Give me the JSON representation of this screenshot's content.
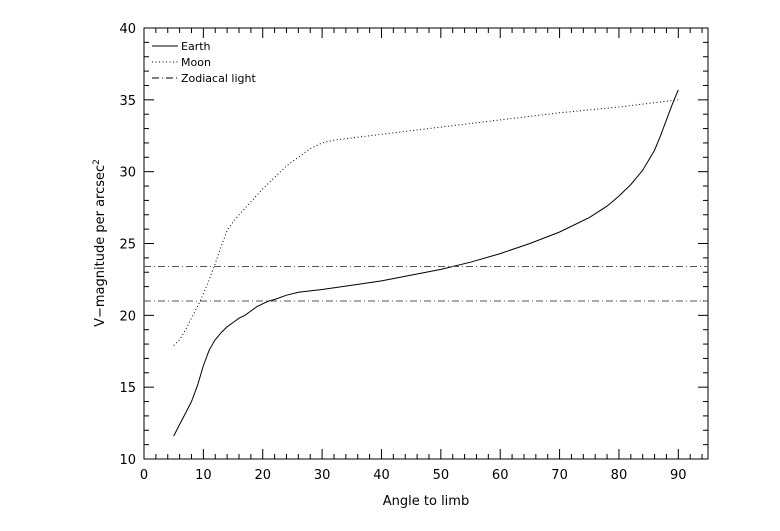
{
  "chart_data": {
    "type": "line",
    "title": "",
    "xlabel": "Angle to limb",
    "ylabel_main": "V−magnitude per arcsec",
    "ylabel_sup": "2",
    "xlim": [
      0,
      95
    ],
    "ylim": [
      10,
      40
    ],
    "x_ticks": [
      0,
      10,
      20,
      30,
      40,
      50,
      60,
      70,
      80,
      90
    ],
    "y_ticks": [
      10,
      15,
      20,
      25,
      30,
      35,
      40
    ],
    "grid": false,
    "legend_position": "top-left",
    "series": [
      {
        "name": "Earth",
        "style": "solid",
        "points": [
          [
            5,
            11.6
          ],
          [
            6,
            12.4
          ],
          [
            7,
            13.2
          ],
          [
            8,
            14.0
          ],
          [
            9,
            15.1
          ],
          [
            10,
            16.5
          ],
          [
            11,
            17.6
          ],
          [
            12,
            18.3
          ],
          [
            13,
            18.8
          ],
          [
            14,
            19.2
          ],
          [
            15,
            19.5
          ],
          [
            16,
            19.8
          ],
          [
            17,
            20.0
          ],
          [
            18,
            20.3
          ],
          [
            19,
            20.6
          ],
          [
            20,
            20.8
          ],
          [
            21,
            21.0
          ],
          [
            22,
            21.1
          ],
          [
            24,
            21.4
          ],
          [
            26,
            21.6
          ],
          [
            28,
            21.7
          ],
          [
            30,
            21.8
          ],
          [
            35,
            22.1
          ],
          [
            40,
            22.4
          ],
          [
            45,
            22.8
          ],
          [
            50,
            23.2
          ],
          [
            55,
            23.7
          ],
          [
            60,
            24.3
          ],
          [
            65,
            25.0
          ],
          [
            70,
            25.8
          ],
          [
            75,
            26.8
          ],
          [
            78,
            27.6
          ],
          [
            80,
            28.3
          ],
          [
            82,
            29.1
          ],
          [
            84,
            30.1
          ],
          [
            86,
            31.5
          ],
          [
            87,
            32.5
          ],
          [
            88,
            33.6
          ],
          [
            89,
            34.7
          ],
          [
            90,
            35.7
          ]
        ]
      },
      {
        "name": "Moon",
        "style": "dotted",
        "points": [
          [
            5,
            17.9
          ],
          [
            6,
            18.3
          ],
          [
            7,
            19.0
          ],
          [
            8,
            19.8
          ],
          [
            9,
            20.6
          ],
          [
            10,
            21.5
          ],
          [
            11,
            22.5
          ],
          [
            12,
            23.6
          ],
          [
            13,
            24.8
          ],
          [
            14,
            25.9
          ],
          [
            15,
            26.5
          ],
          [
            16,
            27.0
          ],
          [
            18,
            27.9
          ],
          [
            20,
            28.8
          ],
          [
            22,
            29.6
          ],
          [
            24,
            30.4
          ],
          [
            26,
            31.0
          ],
          [
            28,
            31.6
          ],
          [
            30,
            32.0
          ],
          [
            32,
            32.2
          ],
          [
            40,
            32.6
          ],
          [
            50,
            33.1
          ],
          [
            60,
            33.6
          ],
          [
            70,
            34.1
          ],
          [
            80,
            34.5
          ],
          [
            90,
            35.0
          ]
        ]
      },
      {
        "name": "Zodiacal light",
        "style": "dashdot",
        "lines_y": [
          21.0,
          23.4
        ]
      }
    ]
  }
}
